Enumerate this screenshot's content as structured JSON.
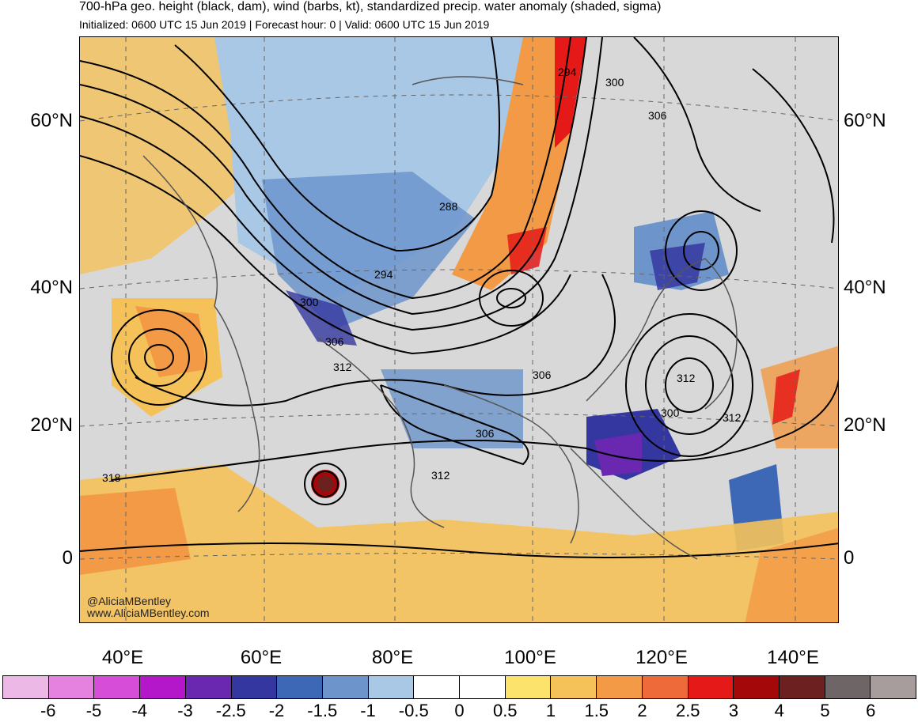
{
  "title": "700-hPa geo. height (black, dam), wind (barbs, kt), standardized precip. water anomaly (shaded, sigma)",
  "subtitle": "Initialized: 0600 UTC 15 Jun 2019 | Forecast hour: 0 | Valid: 0600 UTC 15 Jun 2019",
  "map": {
    "lat_labels": [
      "60°N",
      "40°N",
      "20°N",
      "0"
    ],
    "lon_labels": [
      "40°E",
      "60°E",
      "80°E",
      "100°E",
      "120°E",
      "140°E"
    ],
    "credit_handle": "@AliciaMBentley",
    "credit_url": "www.AliciaMBentley.com",
    "contour_labels": [
      "294",
      "300",
      "306",
      "288",
      "294",
      "300",
      "306",
      "312",
      "306",
      "306",
      "312",
      "300",
      "312",
      "318",
      "312"
    ]
  },
  "colorbar": {
    "colors": [
      "#ecb8e6",
      "#e582e0",
      "#d64ed8",
      "#b416c9",
      "#6a27b0",
      "#3537a0",
      "#3c68b6",
      "#6d95cc",
      "#a8c8e6",
      "#ffffff",
      "#ffffff",
      "#fbe36c",
      "#f5c25a",
      "#f29a45",
      "#ee6a3a",
      "#e51a18",
      "#a40808",
      "#6c2020",
      "#6e6666",
      "#a79d9d"
    ],
    "labels": [
      "-6",
      "-5",
      "-4",
      "-3",
      "-2.5",
      "-2",
      "-1.5",
      "-1",
      "-0.5",
      "0",
      "0.5",
      "1",
      "1.5",
      "2",
      "2.5",
      "3",
      "4",
      "5",
      "6"
    ]
  }
}
